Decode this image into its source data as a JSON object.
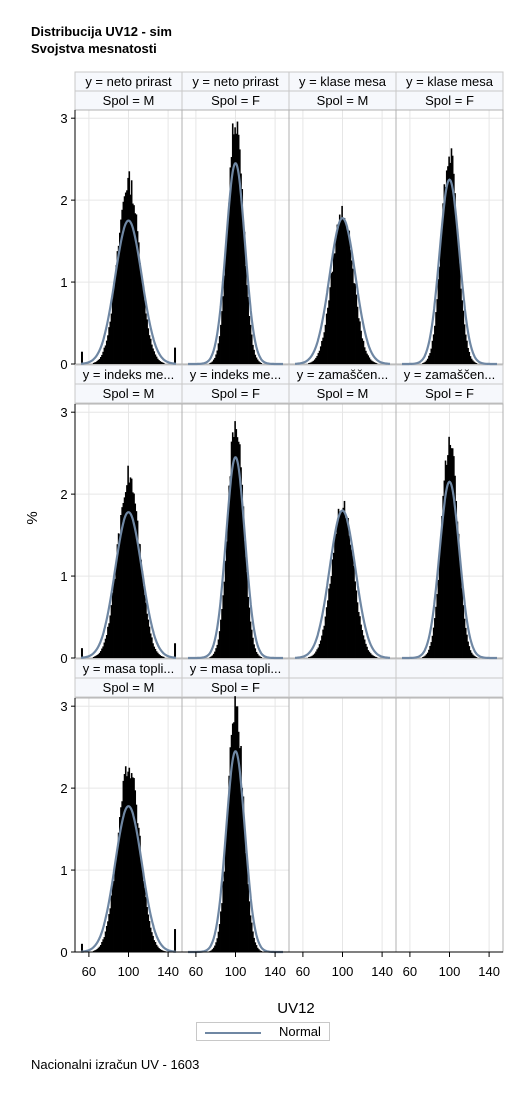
{
  "titles": [
    "Distribucija UV12 - sim",
    "Svojstva mesnatosti"
  ],
  "footnote": "Nacionalni izračun UV - 1603",
  "legend": {
    "label": "Normal"
  },
  "colors": {
    "bars": "#000000",
    "curve": "#6f87a3",
    "grid": "#e6e6e6",
    "border": "#b0b0b0",
    "header_bg": "#f6f8fc"
  },
  "chart_data": {
    "type": "histogram-panel",
    "xlabel": "UV12",
    "ylabel": "%",
    "xlim": [
      50,
      150
    ],
    "ylim": [
      0,
      3.1
    ],
    "xticks": [
      60,
      100,
      140
    ],
    "yticks": [
      0,
      1,
      2,
      3
    ],
    "overlay": "Normal",
    "panels": [
      {
        "y": "y = neto prirast",
        "sex": "Spol = M",
        "peak": 2.25,
        "normal_peak": 1.75,
        "sd": 13.5,
        "tail_spikes": [
          0.15,
          0.2
        ]
      },
      {
        "y": "y = neto prirast",
        "sex": "Spol = F",
        "peak": 3.02,
        "normal_peak": 2.45,
        "sd": 9.5,
        "tail_spikes": [
          0,
          0
        ]
      },
      {
        "y": "y = klase mesa",
        "sex": "Spol = M",
        "peak": 1.88,
        "normal_peak": 1.78,
        "sd": 13,
        "tail_spikes": [
          0,
          0
        ]
      },
      {
        "y": "y = klase mesa",
        "sex": "Spol = F",
        "peak": 2.6,
        "normal_peak": 2.25,
        "sd": 10,
        "tail_spikes": [
          0,
          0
        ]
      },
      {
        "y": "y = indeks me...",
        "sex": "Spol = M",
        "peak": 2.25,
        "normal_peak": 1.78,
        "sd": 13.5,
        "tail_spikes": [
          0.12,
          0.18
        ]
      },
      {
        "y": "y = indeks me...",
        "sex": "Spol = F",
        "peak": 2.92,
        "normal_peak": 2.45,
        "sd": 9.5,
        "tail_spikes": [
          0,
          0
        ]
      },
      {
        "y": "y = zamaščen...",
        "sex": "Spol = M",
        "peak": 1.9,
        "normal_peak": 1.8,
        "sd": 13,
        "tail_spikes": [
          0,
          0
        ]
      },
      {
        "y": "y = zamaščen...",
        "sex": "Spol = F",
        "peak": 2.68,
        "normal_peak": 2.15,
        "sd": 10,
        "tail_spikes": [
          0,
          0
        ]
      },
      {
        "y": "y = masa topli...",
        "sex": "Spol = M",
        "peak": 2.3,
        "normal_peak": 1.78,
        "sd": 13.5,
        "tail_spikes": [
          0.1,
          0.28
        ]
      },
      {
        "y": "y = masa topli...",
        "sex": "Spol = F",
        "peak": 3.05,
        "normal_peak": 2.45,
        "sd": 9.5,
        "tail_spikes": [
          0,
          0
        ]
      }
    ]
  }
}
